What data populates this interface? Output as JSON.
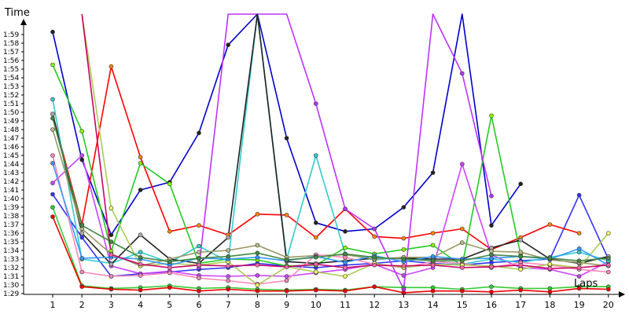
{
  "chart_data": {
    "type": "line",
    "title": "",
    "xlabel": "Laps",
    "ylabel": "Time",
    "x": [
      1,
      2,
      3,
      4,
      5,
      6,
      7,
      8,
      9,
      10,
      11,
      12,
      13,
      14,
      15,
      16,
      17,
      18,
      19,
      20
    ],
    "xlim": [
      0.1,
      20.35
    ],
    "ylim": [
      88,
      126
    ],
    "y_ticks": [
      "1:29",
      "1:30",
      "1:31",
      "1:32",
      "1:33",
      "1:34",
      "1:35",
      "1:36",
      "1:37",
      "1:38",
      "1:39",
      "1:40",
      "1:41",
      "1:42",
      "1:43",
      "1:44",
      "1:45",
      "1:46",
      "1:47",
      "1:48",
      "1:49",
      "1:50",
      "1:51",
      "1:52",
      "1:53",
      "1:54",
      "1:55",
      "1:56",
      "1:57",
      "1:58",
      "1:59"
    ],
    "grid": false,
    "legend": "none",
    "series": [
      {
        "color": "#0000cc",
        "marker_fill": "#222222",
        "values": [
          119.3,
          104.5,
          95.8,
          101.0,
          101.9,
          107.6,
          117.8,
          124.0,
          107.0,
          97.2,
          96.2,
          96.5,
          99.0,
          103.0,
          126.0,
          96.9,
          101.7,
          null,
          null,
          null
        ]
      },
      {
        "color": "#3333ff",
        "marker_fill": "#3333ff",
        "values": [
          100.5,
          95.5,
          91.0,
          91.3,
          91.5,
          91.8,
          92.0,
          92.5,
          92.2,
          92.0,
          92.3,
          92.5,
          92.8,
          92.5,
          92.3,
          92.6,
          92.8,
          93.0,
          100.4,
          93.0
        ]
      },
      {
        "color": "#ff0000",
        "marker_fill": "#ff8800",
        "values": [
          109.8,
          97.0,
          115.3,
          104.8,
          96.2,
          96.9,
          95.8,
          98.2,
          98.1,
          95.5,
          98.8,
          95.6,
          95.4,
          96.0,
          96.5,
          94.1,
          95.5,
          97.0,
          96.0,
          null
        ]
      },
      {
        "color": "#33cc33",
        "marker_fill": "#33cc33",
        "values": [
          99.0,
          89.9,
          89.6,
          89.7,
          89.9,
          89.6,
          89.7,
          89.5,
          89.4,
          89.5,
          89.4,
          89.8,
          89.7,
          89.7,
          89.5,
          89.8,
          89.6,
          89.6,
          89.8,
          89.8
        ]
      },
      {
        "color": "#ee0000",
        "marker_fill": "#ee0000",
        "values": [
          97.9,
          89.8,
          89.5,
          89.4,
          89.7,
          89.3,
          89.5,
          89.3,
          89.3,
          89.4,
          89.3,
          89.8,
          89.1,
          89.3,
          89.3,
          89.2,
          89.4,
          89.2,
          89.6,
          89.5
        ]
      },
      {
        "color": "#22cc22",
        "marker_fill": "#88ff00",
        "values": [
          115.5,
          107.8,
          93.9,
          104.1,
          101.7,
          92.5,
          93.0,
          92.9,
          92.2,
          92.3,
          94.3,
          93.6,
          94.1,
          94.6,
          92.2,
          109.6,
          93.5,
          null,
          null,
          null
        ]
      },
      {
        "color": "#cc44ff",
        "marker_fill": "#cc44ff",
        "values": [
          101.8,
          105.0,
          92.2,
          91.3,
          91.6,
          91.1,
          91.0,
          91.1,
          91.0,
          91.4,
          91.8,
          92.4,
          91.1,
          92.0,
          104.0,
          93.5,
          92.0,
          91.8,
          91.0,
          92.7
        ]
      },
      {
        "color": "#bb33ff",
        "marker_fill": "#bb33ff",
        "values": [
          null,
          null,
          null,
          null,
          null,
          92.0,
          126.0,
          126.0,
          126.0,
          111.0,
          98.8,
          96.5,
          89.5,
          126.0,
          114.5,
          100.3,
          null,
          null,
          null,
          null
        ]
      },
      {
        "color": "#33cccc",
        "marker_fill": "#33cccc",
        "values": [
          111.5,
          93.0,
          92.5,
          93.8,
          92.6,
          94.5,
          92.7,
          122.0,
          93.0,
          105.0,
          93.6,
          92.9,
          93.2,
          92.8,
          92.4,
          93.0,
          92.6,
          93.2,
          93.8,
          92.8
        ]
      },
      {
        "color": "#222222",
        "marker_fill": "#aaaaaa",
        "values": [
          109.8,
          96.0,
          92.4,
          95.8,
          93.0,
          92.5,
          95.5,
          124.0,
          92.7,
          92.5,
          92.8,
          93.1,
          93.1,
          93.0,
          93.0,
          94.3,
          95.2,
          93.0,
          92.5,
          93.3
        ]
      },
      {
        "color": "#999966",
        "marker_fill": "#bbbb88",
        "values": [
          108.0,
          96.5,
          93.6,
          92.2,
          93.0,
          93.8,
          94.0,
          94.6,
          93.2,
          93.4,
          93.5,
          93.0,
          93.2,
          93.2,
          94.9,
          93.9,
          93.8,
          92.9,
          92.6,
          92.2
        ]
      },
      {
        "color": "#ff88bb",
        "marker_fill": "#ff88bb",
        "values": [
          105.0,
          91.5,
          91.0,
          91.1,
          91.4,
          90.8,
          90.5,
          90.1,
          90.5,
          93.5,
          93.2,
          92.4,
          92.0,
          92.7,
          92.5,
          92.0,
          92.6,
          92.3,
          91.8,
          91.5
        ]
      },
      {
        "color": "#aacc55",
        "marker_fill": "#ffff66",
        "values": [
          null,
          126.0,
          98.9,
          92.2,
          92.5,
          92.3,
          92.7,
          90.0,
          92.1,
          91.5,
          91.0,
          92.5,
          92.0,
          92.4,
          92.3,
          92.2,
          91.8,
          92.4,
          92.0,
          96.0
        ]
      },
      {
        "color": "#3399ff",
        "marker_fill": "#3399ff",
        "values": [
          104.1,
          93.1,
          93.2,
          93.0,
          92.3,
          93.1,
          93.0,
          93.2,
          92.8,
          93.3,
          92.6,
          93.4,
          92.7,
          93.3,
          93.0,
          93.1,
          93.3,
          93.0,
          94.2,
          92.3
        ]
      },
      {
        "color": "#448844",
        "marker_fill": "#448844",
        "values": [
          109.3,
          96.9,
          95.0,
          93.2,
          92.7,
          93.1,
          93.3,
          93.7,
          92.9,
          93.2,
          93.6,
          93.2,
          93.0,
          92.8,
          92.8,
          93.5,
          93.3,
          93.1,
          92.8,
          93.1
        ]
      },
      {
        "color": "#cc0066",
        "marker_fill": "#ff66aa",
        "values": [
          null,
          126.0,
          93.5,
          92.4,
          92.0,
          92.3,
          92.2,
          92.3,
          92.1,
          92.4,
          92.0,
          92.3,
          92.2,
          92.3,
          92.0,
          92.1,
          92.3,
          91.9,
          92.0,
          92.3
        ]
      }
    ]
  }
}
